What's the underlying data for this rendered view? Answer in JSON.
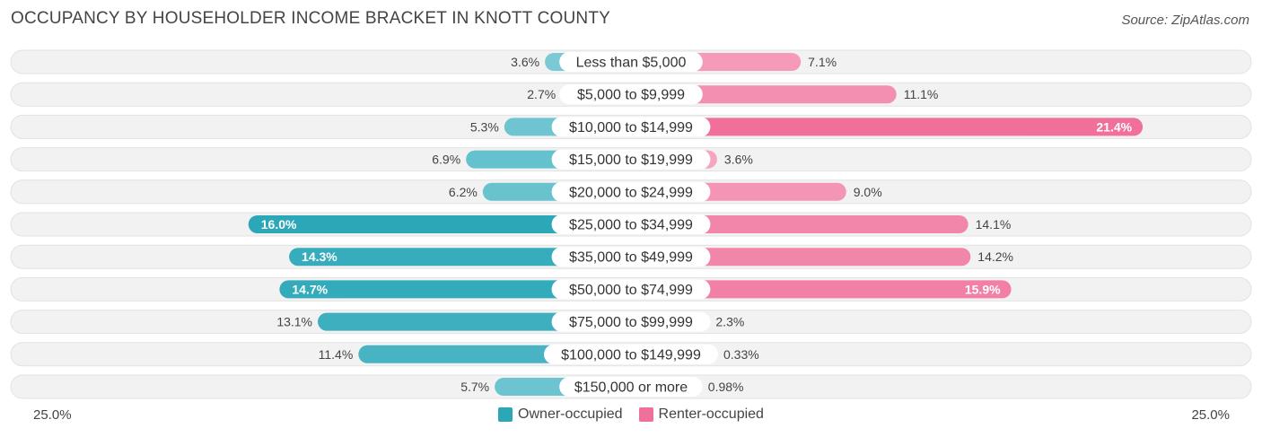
{
  "title": "OCCUPANCY BY HOUSEHOLDER INCOME BRACKET IN KNOTT COUNTY",
  "source": "Source: ZipAtlas.com",
  "axis": {
    "left_label": "25.0%",
    "right_label": "25.0%"
  },
  "legend": {
    "owner": {
      "label": "Owner-occupied",
      "color": "#2ba7b8"
    },
    "renter": {
      "label": "Renter-occupied",
      "color": "#f0709a"
    }
  },
  "chart_data": {
    "type": "bar",
    "orientation": "horizontal-diverging",
    "xlim": [
      -25,
      25
    ],
    "categories": [
      "Less than $5,000",
      "$5,000 to $9,999",
      "$10,000 to $14,999",
      "$15,000 to $19,999",
      "$20,000 to $24,999",
      "$25,000 to $34,999",
      "$35,000 to $49,999",
      "$50,000 to $74,999",
      "$75,000 to $99,999",
      "$100,000 to $149,999",
      "$150,000 or more"
    ],
    "series": [
      {
        "name": "Owner-occupied",
        "values": [
          3.6,
          2.7,
          5.3,
          6.9,
          6.2,
          16.0,
          14.3,
          14.7,
          13.1,
          11.4,
          5.7
        ],
        "labels": [
          "3.6%",
          "2.7%",
          "5.3%",
          "6.9%",
          "6.2%",
          "16.0%",
          "14.3%",
          "14.7%",
          "13.1%",
          "11.4%",
          "5.7%"
        ]
      },
      {
        "name": "Renter-occupied",
        "values": [
          7.1,
          11.1,
          21.4,
          3.6,
          9.0,
          14.1,
          14.2,
          15.9,
          2.3,
          0.33,
          0.98
        ],
        "labels": [
          "7.1%",
          "11.1%",
          "21.4%",
          "3.6%",
          "9.0%",
          "14.1%",
          "14.2%",
          "15.9%",
          "2.3%",
          "0.33%",
          "0.98%"
        ]
      }
    ]
  }
}
